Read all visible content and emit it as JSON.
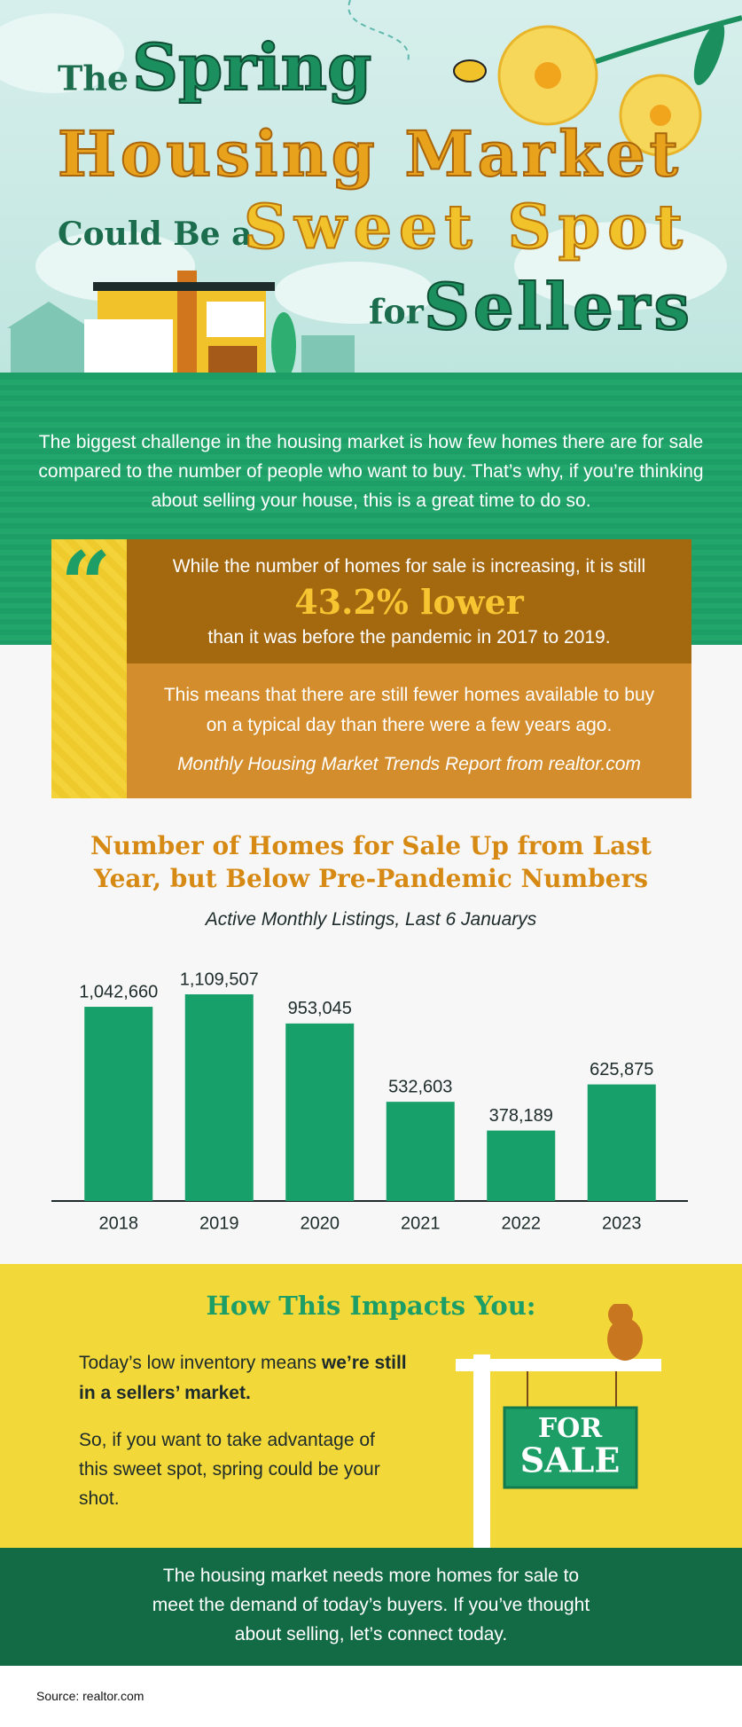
{
  "header": {
    "title": {
      "the": "The",
      "spring": "Spring",
      "housing_market": "Housing Market",
      "could_be_a": "Could Be a",
      "sweet_spot": "Sweet Spot",
      "for": "for",
      "sellers": "Sellers"
    }
  },
  "intro": "The biggest challenge in the housing market is how few homes there are for sale compared to the number of people who want to buy. That’s why, if you’re thinking about selling your house, this is a great time to do so.",
  "quote": {
    "line1": "While the number of homes for sale is increasing, it is still",
    "highlight": "43.2% lower",
    "line3": "than it was before the pandemic in 2017 to 2019.",
    "paragraph": "This means that there are still fewer homes available to buy on a typical day than there were a few years ago.",
    "citation": "Monthly Housing Market Trends Report from realtor.com"
  },
  "chart_data": {
    "type": "bar",
    "title": "Number of Homes for Sale Up from Last Year, but Below Pre-Pandemic Numbers",
    "subtitle": "Active Monthly Listings, Last 6 Januarys",
    "categories": [
      "2018",
      "2019",
      "2020",
      "2021",
      "2022",
      "2023"
    ],
    "values": [
      1042660,
      1109507,
      953045,
      532603,
      378189,
      625875
    ],
    "value_labels": [
      "1,042,660",
      "1,109,507",
      "953,045",
      "532,603",
      "378,189",
      "625,875"
    ],
    "color": "#17a06a"
  },
  "impact": {
    "heading": "How This Impacts You:",
    "p1_normal": "Today’s low inventory means ",
    "p1_bold": "we’re still in a sellers’ market.",
    "p2": "So, if you want to take advantage of this sweet spot, spring could be your shot.",
    "sign": {
      "line1": "FOR",
      "line2": "SALE"
    }
  },
  "footer": "The housing market needs more homes for sale to meet the demand of today’s buyers. If you’ve thought about selling, let’s connect today.",
  "source": "Source: realtor.com"
}
